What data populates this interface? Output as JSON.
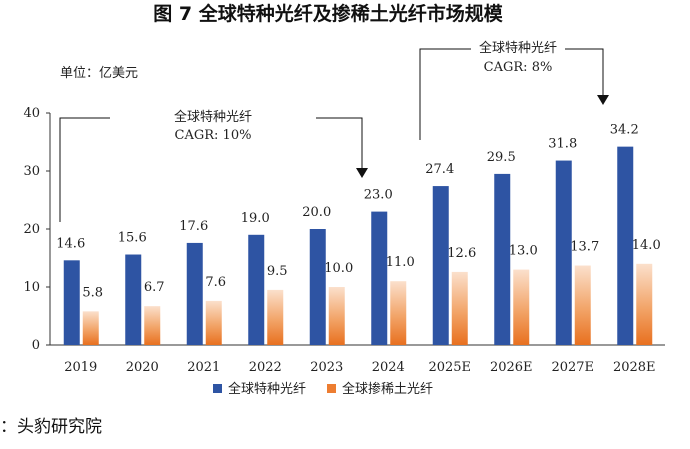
{
  "chart_data": {
    "type": "bar",
    "title": "图 7 全球特种光纤及掺稀土光纤市场规模",
    "unit_label": "单位：亿美元",
    "categories": [
      "2019",
      "2020",
      "2021",
      "2022",
      "2023",
      "2024",
      "2025E",
      "2026E",
      "2027E",
      "2028E"
    ],
    "series": [
      {
        "name": "全球特种光纤",
        "color": "#2e54a3",
        "values": [
          14.6,
          15.6,
          17.6,
          19.0,
          20.0,
          23.0,
          27.4,
          29.5,
          31.8,
          34.2
        ]
      },
      {
        "name": "全球掺稀土光纤",
        "color": "#ed7d31",
        "values": [
          5.8,
          6.7,
          7.6,
          9.5,
          10.0,
          11.0,
          12.6,
          13.0,
          13.7,
          14.0
        ]
      }
    ],
    "data_labels": {
      "series0": [
        "14.6",
        "15.6",
        "17.6",
        "19.0",
        "20.0",
        "23.0",
        "27.4",
        "29.5",
        "31.8",
        "34.2"
      ],
      "series1": [
        "5.8",
        "6.7",
        "7.6",
        "9.5",
        "10.0",
        "11.0",
        "12.6",
        "13.0",
        "13.7",
        "14.0"
      ]
    },
    "yticks": [
      "0",
      "10",
      "20",
      "30",
      "40"
    ],
    "ylim": [
      0,
      40
    ],
    "xlabel": "",
    "ylabel": "",
    "grid": false,
    "legend_position": "bottom",
    "annotations": [
      {
        "line1": "全球特种光纤",
        "line2": "CAGR: 10%",
        "from": "2019",
        "to": "2024"
      },
      {
        "line1": "全球特种光纤",
        "line2": "CAGR: 8%",
        "from": "2025E",
        "to": "2028E"
      }
    ]
  },
  "source_text": "：头豹研究院"
}
